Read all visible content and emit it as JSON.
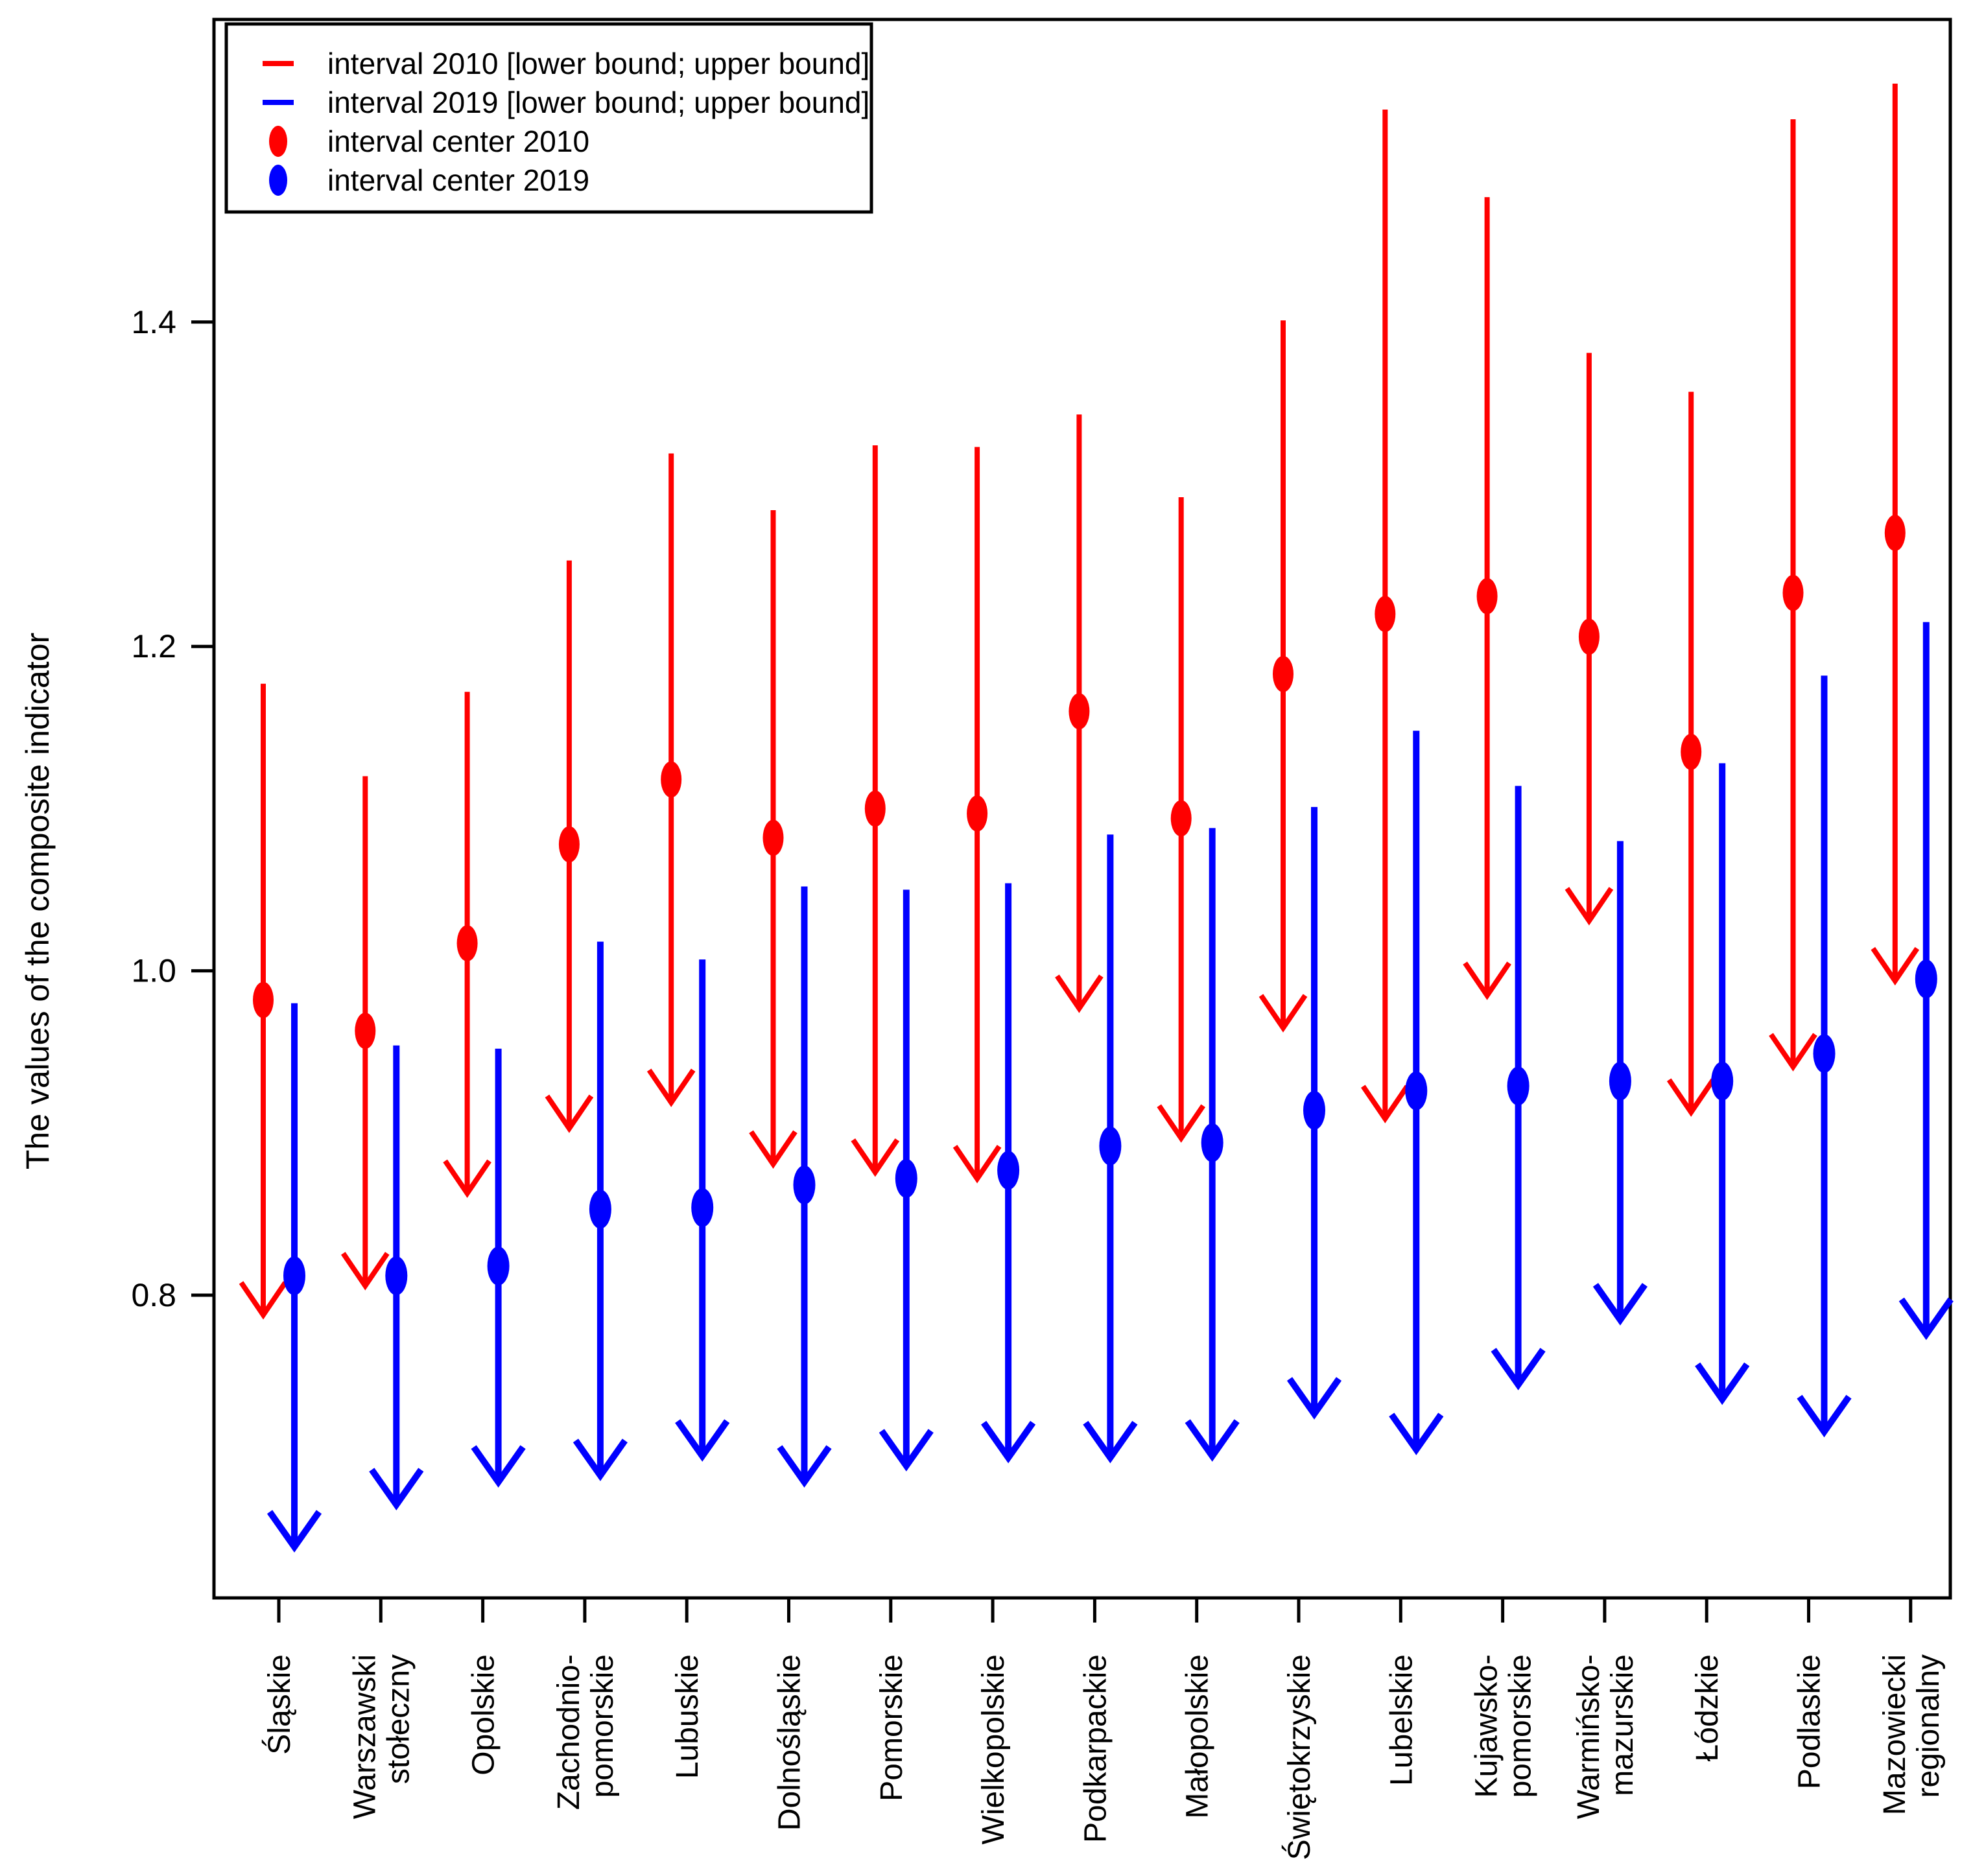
{
  "page": {
    "background": "#FFFFFF"
  },
  "chart_data": {
    "type": "arrow-interval",
    "title": "",
    "xlabel": "",
    "ylabel": "The values of the composite indicator",
    "yticks": [
      "0.8",
      "1.0",
      "1.2",
      "1.4"
    ],
    "ytick_values": [
      0.8,
      1.0,
      1.2,
      1.4
    ],
    "ylim": [
      0.613,
      1.586
    ],
    "grid": false,
    "legend_position": "top-left",
    "legend": [
      {
        "label": "interval 2010 [lower bound; upper bound]",
        "marker": "dash",
        "color": "#FF0000"
      },
      {
        "label": "interval 2019 [lower bound; upper bound]",
        "marker": "dash",
        "color": "#0000FF"
      },
      {
        "label": "interval center 2010",
        "marker": "dot",
        "color": "#FF0000"
      },
      {
        "label": "interval center 2019",
        "marker": "dot",
        "color": "#0000FF"
      }
    ],
    "colors": {
      "y2010": "#FF0000",
      "y2019": "#0000FF"
    },
    "categories": [
      {
        "name": "Śląskie",
        "lines": [
          "Śląskie"
        ]
      },
      {
        "name": "Warszawski stołeczny",
        "lines": [
          "Warszawski",
          "stołeczny"
        ]
      },
      {
        "name": "Opolskie",
        "lines": [
          "Opolskie"
        ]
      },
      {
        "name": "Zachodnio-pomorskie",
        "lines": [
          "Zachodnio-",
          "pomorskie"
        ]
      },
      {
        "name": "Lubuskie",
        "lines": [
          "Lubuskie"
        ]
      },
      {
        "name": "Dolnośląskie",
        "lines": [
          "Dolnośląskie"
        ]
      },
      {
        "name": "Pomorskie",
        "lines": [
          "Pomorskie"
        ]
      },
      {
        "name": "Wielkopolskie",
        "lines": [
          "Wielkopolskie"
        ]
      },
      {
        "name": "Podkarpackie",
        "lines": [
          "Podkarpackie"
        ]
      },
      {
        "name": "Małopolskie",
        "lines": [
          "Małopolskie"
        ]
      },
      {
        "name": "Świętokrzyskie",
        "lines": [
          "Świętokrzyskie"
        ]
      },
      {
        "name": "Lubelskie",
        "lines": [
          "Lubelskie"
        ]
      },
      {
        "name": "Kujawsko-",
        "lines": [
          "Kujawsko-",
          "pomorskie"
        ]
      },
      {
        "name": "Warmińsko-mazurskie",
        "lines": [
          "Warmińsko-",
          "mazurskie"
        ]
      },
      {
        "name": "Łódzkie",
        "lines": [
          "Łódzkie"
        ]
      },
      {
        "name": "Podlaskie",
        "lines": [
          "Podlaskie"
        ]
      },
      {
        "name": "Mazowiecki regionalny",
        "lines": [
          "Mazowiecki",
          "regionalny"
        ]
      }
    ],
    "series": [
      {
        "name": "interval 2010",
        "year": "2010",
        "color": "#FF0000",
        "values": [
          {
            "upper": 1.177,
            "center": 0.982,
            "lower": 0.787
          },
          {
            "upper": 1.12,
            "center": 0.963,
            "lower": 0.805
          },
          {
            "upper": 1.172,
            "center": 1.017,
            "lower": 0.862
          },
          {
            "upper": 1.253,
            "center": 1.078,
            "lower": 0.902
          },
          {
            "upper": 1.319,
            "center": 1.118,
            "lower": 0.918
          },
          {
            "upper": 1.284,
            "center": 1.082,
            "lower": 0.88
          },
          {
            "upper": 1.324,
            "center": 1.1,
            "lower": 0.875
          },
          {
            "upper": 1.323,
            "center": 1.097,
            "lower": 0.871
          },
          {
            "upper": 1.343,
            "center": 1.16,
            "lower": 0.976
          },
          {
            "upper": 1.292,
            "center": 1.094,
            "lower": 0.896
          },
          {
            "upper": 1.401,
            "center": 1.183,
            "lower": 0.964
          },
          {
            "upper": 1.531,
            "center": 1.22,
            "lower": 0.908
          },
          {
            "upper": 1.477,
            "center": 1.231,
            "lower": 0.984
          },
          {
            "upper": 1.381,
            "center": 1.206,
            "lower": 1.03
          },
          {
            "upper": 1.357,
            "center": 1.135,
            "lower": 0.912
          },
          {
            "upper": 1.525,
            "center": 1.233,
            "lower": 0.94
          },
          {
            "upper": 1.547,
            "center": 1.27,
            "lower": 0.993
          }
        ]
      },
      {
        "name": "interval 2019",
        "year": "2019",
        "color": "#0000FF",
        "values": [
          {
            "upper": 0.98,
            "center": 0.812,
            "lower": 0.644
          },
          {
            "upper": 0.954,
            "center": 0.812,
            "lower": 0.67
          },
          {
            "upper": 0.952,
            "center": 0.818,
            "lower": 0.684
          },
          {
            "upper": 1.018,
            "center": 0.853,
            "lower": 0.688
          },
          {
            "upper": 1.007,
            "center": 0.854,
            "lower": 0.7
          },
          {
            "upper": 1.052,
            "center": 0.868,
            "lower": 0.684
          },
          {
            "upper": 1.05,
            "center": 0.872,
            "lower": 0.694
          },
          {
            "upper": 1.054,
            "center": 0.877,
            "lower": 0.699
          },
          {
            "upper": 1.084,
            "center": 0.892,
            "lower": 0.699
          },
          {
            "upper": 1.088,
            "center": 0.894,
            "lower": 0.7
          },
          {
            "upper": 1.101,
            "center": 0.914,
            "lower": 0.726
          },
          {
            "upper": 1.148,
            "center": 0.926,
            "lower": 0.704
          },
          {
            "upper": 1.114,
            "center": 0.929,
            "lower": 0.744
          },
          {
            "upper": 1.08,
            "center": 0.932,
            "lower": 0.784
          },
          {
            "upper": 1.128,
            "center": 0.932,
            "lower": 0.735
          },
          {
            "upper": 1.182,
            "center": 0.949,
            "lower": 0.715
          },
          {
            "upper": 1.215,
            "center": 0.995,
            "lower": 0.775
          }
        ]
      }
    ]
  }
}
